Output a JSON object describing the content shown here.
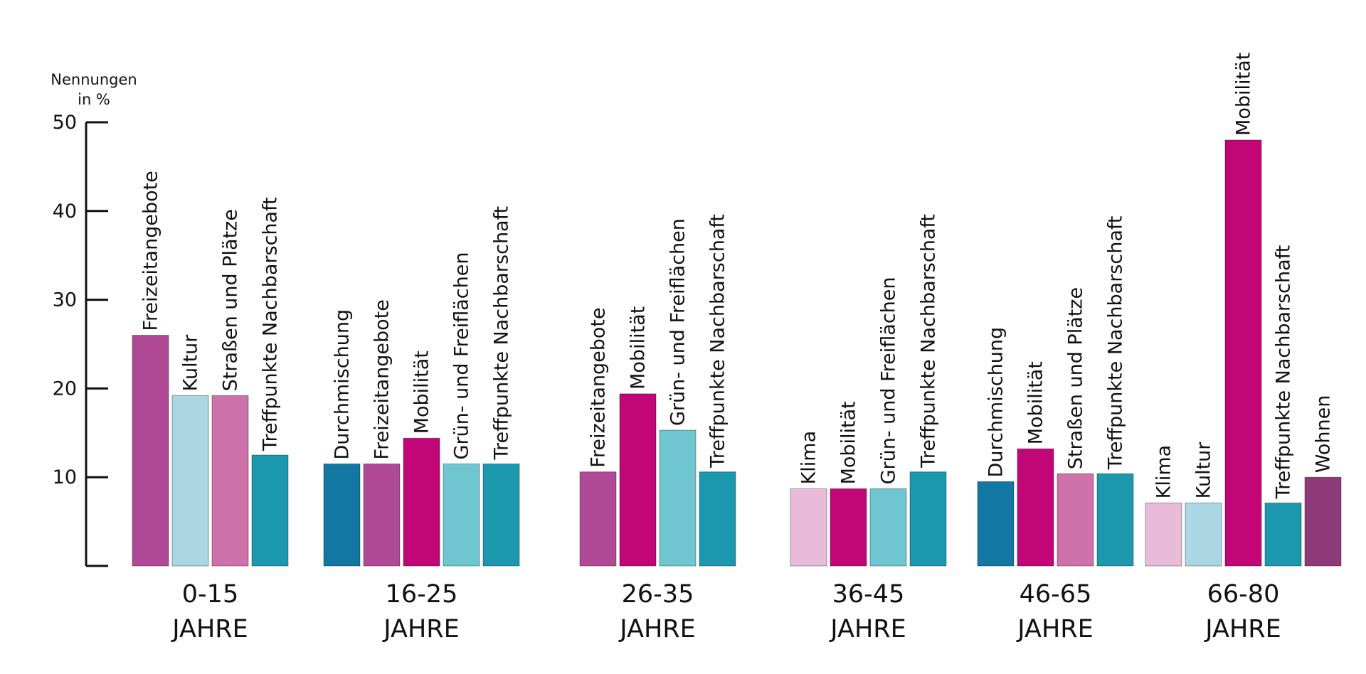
{
  "chart_data": {
    "type": "bar",
    "ylabel_line1": "Nennungen",
    "ylabel_line2": "in %",
    "ylim": [
      0,
      50
    ],
    "yticks": [
      "10",
      "20",
      "30",
      "40",
      "50"
    ],
    "groups": [
      {
        "label_line1": "0-15",
        "label_line2": "JAHRE",
        "bars": [
          {
            "label": "Freizeitangebote",
            "value": 26,
            "color": "#b04a97"
          },
          {
            "label": "Kultur",
            "value": 19.2,
            "color": "#abd6e3"
          },
          {
            "label": "Straßen und Plätze",
            "value": 19.2,
            "color": "#cd72aa"
          },
          {
            "label": "Treffpunkte Nachbarschaft",
            "value": 12.5,
            "color": "#1b98ad"
          }
        ]
      },
      {
        "label_line1": "16-25",
        "label_line2": "JAHRE",
        "bars": [
          {
            "label": "Durchmischung",
            "value": 11.5,
            "color": "#1377a3"
          },
          {
            "label": "Freizeitangebote",
            "value": 11.5,
            "color": "#b04a97"
          },
          {
            "label": "Mobilität",
            "value": 14.4,
            "color": "#c20677"
          },
          {
            "label": "Grün- und Freiflächen",
            "value": 11.5,
            "color": "#6fc6d1"
          },
          {
            "label": "Treffpunkte Nachbarschaft",
            "value": 11.5,
            "color": "#1b98ad"
          }
        ]
      },
      {
        "label_line1": "26-35",
        "label_line2": "JAHRE",
        "bars": [
          {
            "label": "Freizeitangebote",
            "value": 10.6,
            "color": "#b04a97"
          },
          {
            "label": "Mobilität",
            "value": 19.4,
            "color": "#c20677"
          },
          {
            "label": "Grün- und Freiflächen",
            "value": 15.3,
            "color": "#6fc6d1"
          },
          {
            "label": "Treffpunkte Nachbarschaft",
            "value": 10.6,
            "color": "#1b98ad"
          }
        ]
      },
      {
        "label_line1": "36-45",
        "label_line2": "JAHRE",
        "bars": [
          {
            "label": "Klima",
            "value": 8.7,
            "color": "#e8bcd8"
          },
          {
            "label": "Mobilität",
            "value": 8.7,
            "color": "#c20677"
          },
          {
            "label": "Grün- und Freiflächen",
            "value": 8.7,
            "color": "#6fc6d1"
          },
          {
            "label": "Treffpunkte Nachbarschaft",
            "value": 10.6,
            "color": "#1b98ad"
          }
        ]
      },
      {
        "label_line1": "46-65",
        "label_line2": "JAHRE",
        "bars": [
          {
            "label": "Durchmischung",
            "value": 9.5,
            "color": "#1377a3"
          },
          {
            "label": "Mobilität",
            "value": 13.2,
            "color": "#c20677"
          },
          {
            "label": "Straßen und Plätze",
            "value": 10.4,
            "color": "#cd72aa"
          },
          {
            "label": "Treffpunkte Nachbarschaft",
            "value": 10.4,
            "color": "#1b98ad"
          }
        ]
      },
      {
        "label_line1": "66-80",
        "label_line2": "JAHRE",
        "bars": [
          {
            "label": "Klima",
            "value": 7.1,
            "color": "#e8bcd8"
          },
          {
            "label": "Kultur",
            "value": 7.1,
            "color": "#abd6e3"
          },
          {
            "label": "Mobilität",
            "value": 48,
            "color": "#c20677"
          },
          {
            "label": "Treffpunkte Nachbarschaft",
            "value": 7.1,
            "color": "#1b98ad"
          },
          {
            "label": "Wohnen",
            "value": 10,
            "color": "#8f3a78"
          }
        ]
      }
    ]
  }
}
